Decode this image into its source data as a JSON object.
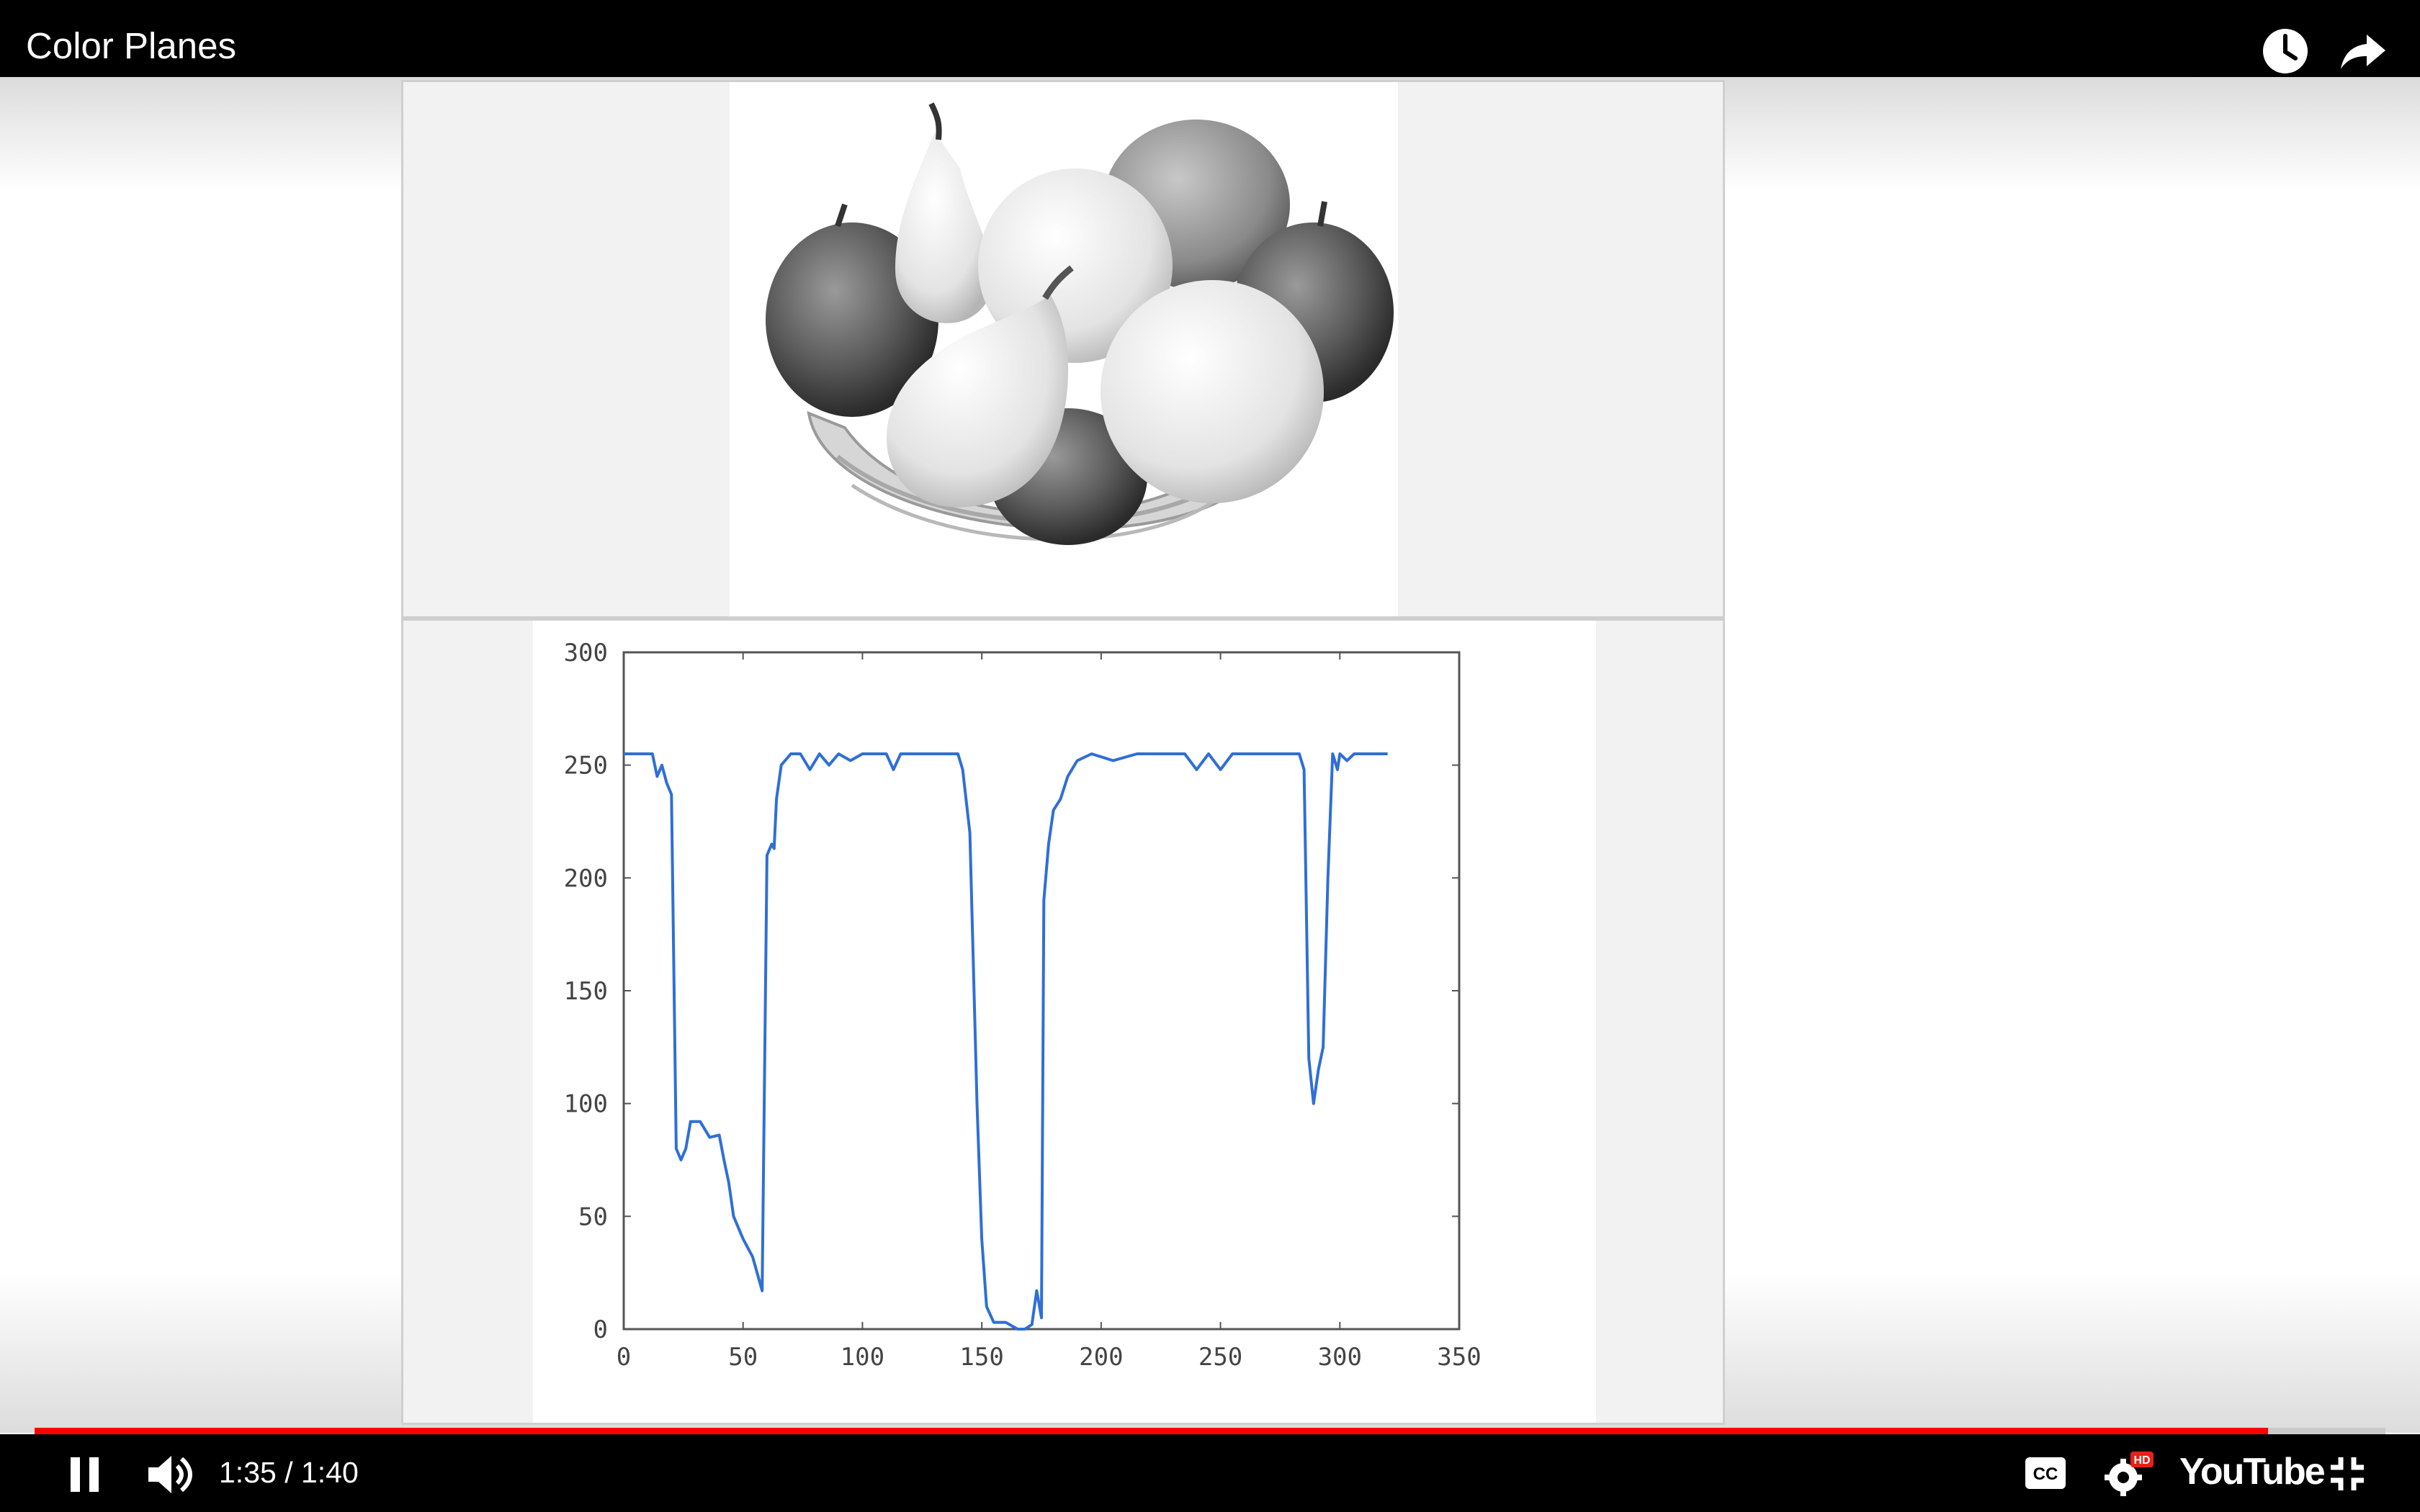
{
  "header": {
    "title": "Color Planes",
    "watch_later_icon": "clock-icon",
    "share_icon": "share-arrow-icon"
  },
  "player": {
    "time_display": "1:35 / 1:40",
    "progress_fraction": 0.95,
    "hd_badge": "HD",
    "brand": "YouTube",
    "accent_color": "#ff0000",
    "icons": [
      "pause-icon",
      "volume-icon",
      "captions-icon",
      "settings-gear-icon",
      "exit-fullscreen-icon"
    ]
  },
  "slide": {
    "image_description_icon": "fruit-bowl-grayscale-image"
  },
  "chart_data": {
    "type": "line",
    "title": "",
    "xlabel": "",
    "ylabel": "",
    "xlim": [
      0,
      350
    ],
    "ylim": [
      0,
      300
    ],
    "xticks": [
      "0",
      "50",
      "100",
      "150",
      "200",
      "250",
      "300",
      "350"
    ],
    "yticks": [
      "0",
      "50",
      "100",
      "150",
      "200",
      "250",
      "300"
    ],
    "grid": false,
    "series": [
      {
        "color": "#2f6fd6",
        "x": [
          0,
          12,
          14,
          16,
          18,
          20,
          22,
          24,
          26,
          28,
          32,
          36,
          40,
          42,
          44,
          46,
          50,
          54,
          58,
          60,
          62,
          63,
          64,
          66,
          70,
          74,
          78,
          82,
          86,
          90,
          95,
          100,
          110,
          113,
          116,
          125,
          135,
          140,
          142,
          145,
          148,
          150,
          152,
          155,
          160,
          165,
          168,
          171,
          173,
          175,
          176,
          178,
          180,
          183,
          186,
          190,
          196,
          205,
          215,
          225,
          235,
          240,
          245,
          250,
          255,
          260,
          270,
          283,
          285,
          287,
          289,
          291,
          293,
          295,
          297,
          299,
          300,
          303,
          306,
          310,
          320
        ],
        "y": [
          255,
          255,
          245,
          250,
          242,
          237,
          80,
          75,
          80,
          92,
          92,
          85,
          86,
          75,
          65,
          50,
          40,
          32,
          17,
          210,
          215,
          213,
          235,
          250,
          255,
          255,
          248,
          255,
          250,
          255,
          252,
          255,
          255,
          248,
          255,
          255,
          255,
          255,
          248,
          220,
          100,
          40,
          10,
          3,
          3,
          0,
          0,
          2,
          17,
          5,
          190,
          215,
          230,
          235,
          245,
          252,
          255,
          252,
          255,
          255,
          255,
          248,
          255,
          248,
          255,
          255,
          255,
          255,
          248,
          120,
          100,
          115,
          125,
          200,
          255,
          248,
          255,
          252,
          255,
          255,
          255
        ]
      }
    ]
  }
}
